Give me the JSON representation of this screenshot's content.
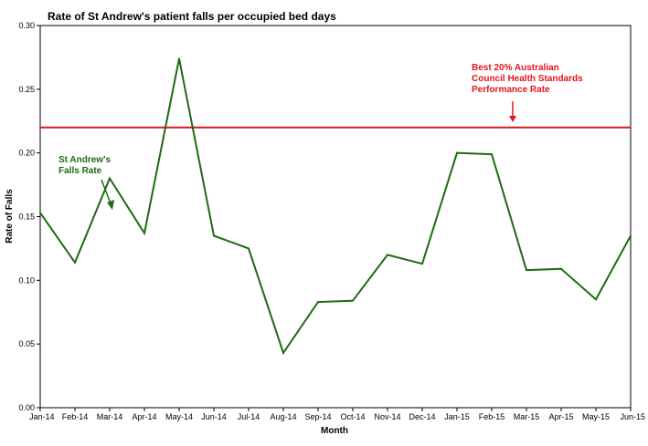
{
  "chart_data": {
    "type": "line",
    "title": "Rate of St Andrew's patient falls per occupied bed days",
    "xlabel": "Month",
    "ylabel": "Rate of Falls",
    "categories": [
      "Jan-14",
      "Feb-14",
      "Mar-14",
      "Apr-14",
      "May-14",
      "Jun-14",
      "Jul-14",
      "Aug-14",
      "Sep-14",
      "Oct-14",
      "Nov-14",
      "Dec-14",
      "Jan-15",
      "Feb-15",
      "Mar-15",
      "Apr-15",
      "May-15",
      "Jun-15"
    ],
    "yticks": [
      "0.00",
      "0.05",
      "0.10",
      "0.15",
      "0.20",
      "0.25",
      "0.30"
    ],
    "ylim": [
      0,
      0.3
    ],
    "grid": false,
    "legend": "none",
    "series": [
      {
        "name": "St Andrew's Falls Rate",
        "color": "#1e6b12",
        "values": [
          0.153,
          0.114,
          0.18,
          0.137,
          0.274,
          0.135,
          0.125,
          0.043,
          0.083,
          0.084,
          0.12,
          0.113,
          0.2,
          0.199,
          0.108,
          0.109,
          0.085,
          0.135
        ]
      }
    ],
    "reference_line": {
      "value": 0.22,
      "color": "#e0161b"
    },
    "annotations": [
      {
        "lines": [
          "Best 20% Australian",
          "Council Health Standards",
          "Performance Rate"
        ],
        "color": "#e0161b"
      },
      {
        "lines": [
          "St Andrew's",
          "Falls Rate"
        ],
        "color": "#1e6b12"
      }
    ]
  }
}
